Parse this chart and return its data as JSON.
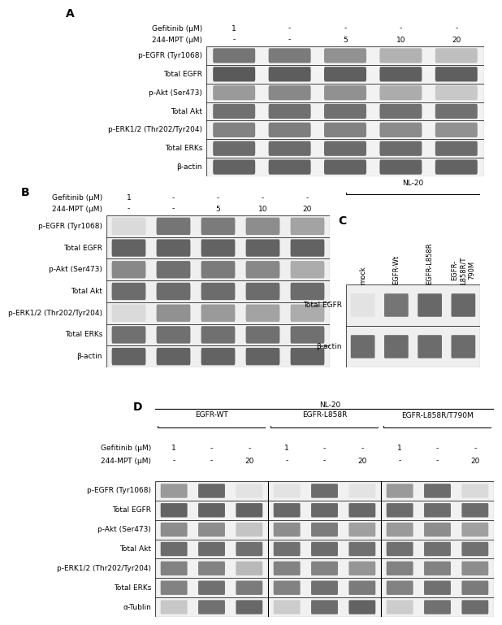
{
  "panel_A": {
    "label": "A",
    "gefitinib_row": "Gefitinib (μM)",
    "gefitinib_vals": [
      "1",
      "-",
      "-",
      "-",
      "-"
    ],
    "mpt_row": "244-MPT (μM)",
    "mpt_vals": [
      "-",
      "-",
      "5",
      "10",
      "20"
    ],
    "blot_labels": [
      "p-EGFR (Tyr1068)",
      "Total EGFR",
      "p-Akt (Ser473)",
      "Total Akt",
      "p-ERK1/2 (Thr202/Tyr204)",
      "Total ERKs",
      "β-actin"
    ],
    "n_lanes": 5
  },
  "panel_B": {
    "label": "B",
    "gefitinib_row": "Gefitinib (μM)",
    "gefitinib_vals": [
      "1",
      "-",
      "-",
      "-",
      "-"
    ],
    "mpt_row": "244-MPT (μM)",
    "mpt_vals": [
      "-",
      "-",
      "5",
      "10",
      "20"
    ],
    "blot_labels": [
      "p-EGFR (Tyr1068)",
      "Total EGFR",
      "p-Akt (Ser473)",
      "Total Akt",
      "p-ERK1/2 (Thr202/Tyr204)",
      "Total ERKs",
      "β-actin"
    ],
    "n_lanes": 5
  },
  "panel_C": {
    "label": "C",
    "title": "NL-20",
    "col_labels": [
      "mock",
      "EGFR-Wt",
      "EGFR-L858R",
      "EGFR-\nL858R/T\n790M"
    ],
    "blot_labels": [
      "Total EGFR",
      "β-actin"
    ],
    "n_lanes": 4
  },
  "panel_D": {
    "label": "D",
    "title": "NL-20",
    "groups": [
      "EGFR-WT",
      "EGFR-L858R",
      "EGFR-L858R/T790M"
    ],
    "gefitinib_row": "Gefitinib (μM)",
    "gefitinib_vals": [
      "1",
      "-",
      "-",
      "1",
      "-",
      "-",
      "1",
      "-",
      "-"
    ],
    "mpt_row": "244-MPT (μM)",
    "mpt_vals": [
      "-",
      "-",
      "20",
      "-",
      "-",
      "20",
      "-",
      "-",
      "20"
    ],
    "blot_labels": [
      "p-EGFR (Tyr1068)",
      "Total EGFR",
      "p-Akt (Ser473)",
      "Total Akt",
      "p-ERK1/2 (Thr202/Tyr204)",
      "Total ERKs",
      "α-Tublin"
    ],
    "n_lanes": 9,
    "lanes_per_group": 3
  },
  "bg_color": "#ffffff",
  "text_color": "#000000",
  "font_size": 6.5,
  "label_font_size": 10
}
